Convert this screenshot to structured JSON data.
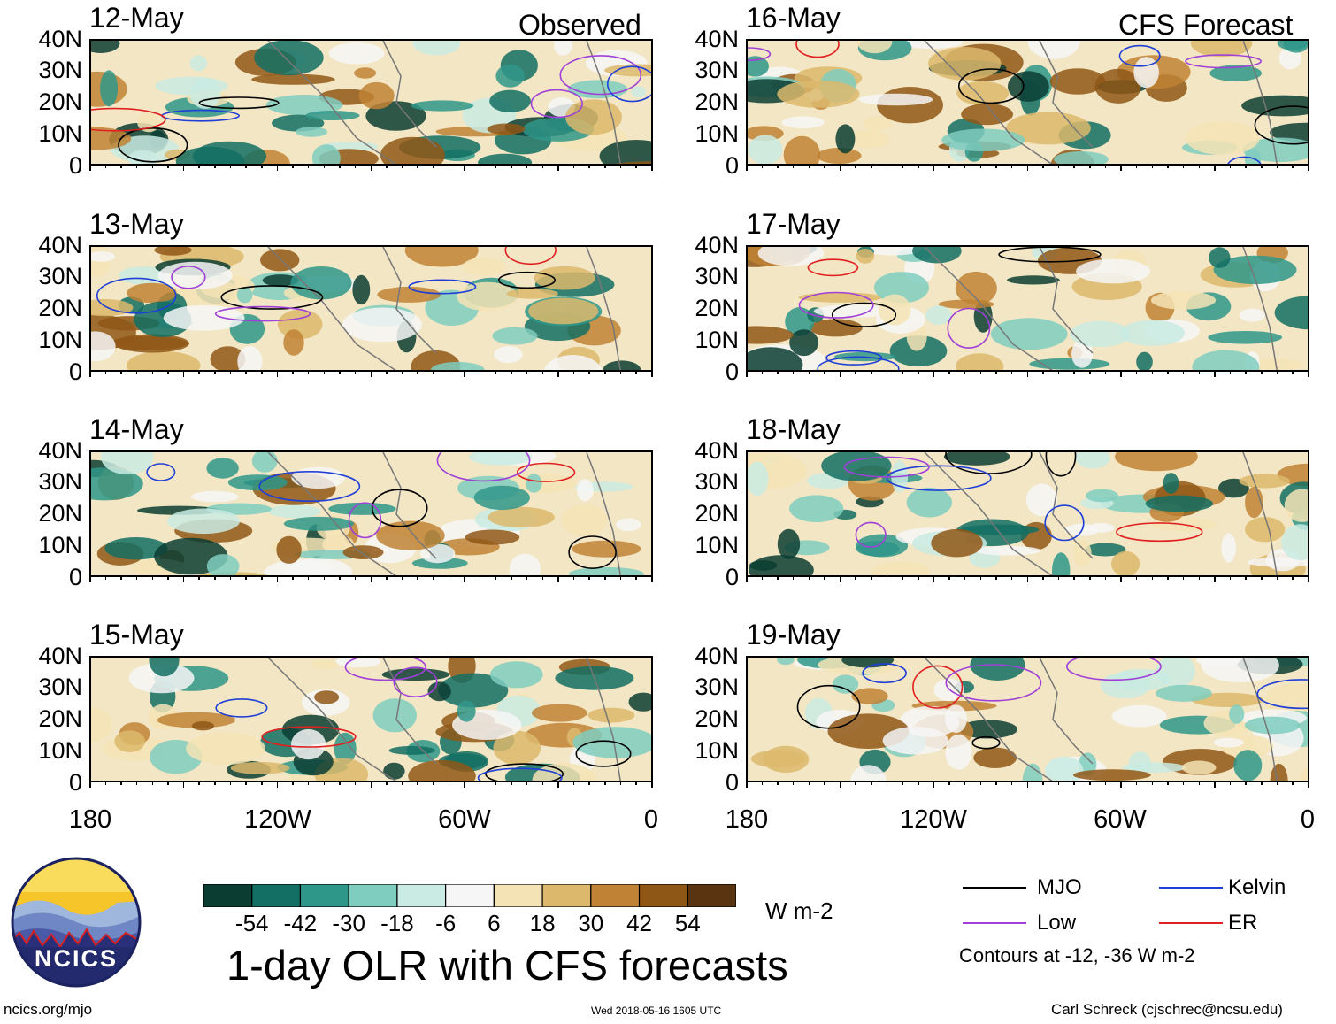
{
  "columns": {
    "left_title": "Observed",
    "right_title": "CFS Forecast"
  },
  "panels": [
    {
      "date": "12-May",
      "col": "left",
      "row": 0
    },
    {
      "date": "13-May",
      "col": "left",
      "row": 1
    },
    {
      "date": "14-May",
      "col": "left",
      "row": 2
    },
    {
      "date": "15-May",
      "col": "left",
      "row": 3
    },
    {
      "date": "16-May",
      "col": "right",
      "row": 0
    },
    {
      "date": "17-May",
      "col": "right",
      "row": 1
    },
    {
      "date": "18-May",
      "col": "right",
      "row": 2
    },
    {
      "date": "19-May",
      "col": "right",
      "row": 3
    }
  ],
  "latitude_labels": [
    "40N",
    "30N",
    "20N",
    "10N",
    "0"
  ],
  "longitude_labels": [
    "180",
    "120W",
    "60W",
    "0"
  ],
  "colorbar": {
    "colors": [
      "#0b3d33",
      "#136f63",
      "#2f978a",
      "#7fcdbf",
      "#c9ebe3",
      "#f6f6f6",
      "#f4e3b5",
      "#dcb86c",
      "#c08335",
      "#8f5716",
      "#5a3410"
    ],
    "labels": [
      "-54",
      "-42",
      "-30",
      "-18",
      "-6",
      "6",
      "18",
      "30",
      "42",
      "54"
    ],
    "units": "W m-2"
  },
  "main_title": "1-day OLR with CFS forecasts",
  "legend": {
    "items": [
      {
        "label": "MJO",
        "color": "#000000"
      },
      {
        "label": "Kelvin",
        "color": "#1f3fd6"
      },
      {
        "label": "Low",
        "color": "#a040d8"
      },
      {
        "label": "ER",
        "color": "#e02020"
      }
    ],
    "note": "Contours at -12, -36 W m-2"
  },
  "logo": {
    "text": "NCICS"
  },
  "footer": {
    "url": "ncics.org/mjo",
    "timestamp": "Wed 2018-05-16 1605 UTC",
    "credit": "Carl Schreck (cjschrec@ncsu.edu)"
  }
}
